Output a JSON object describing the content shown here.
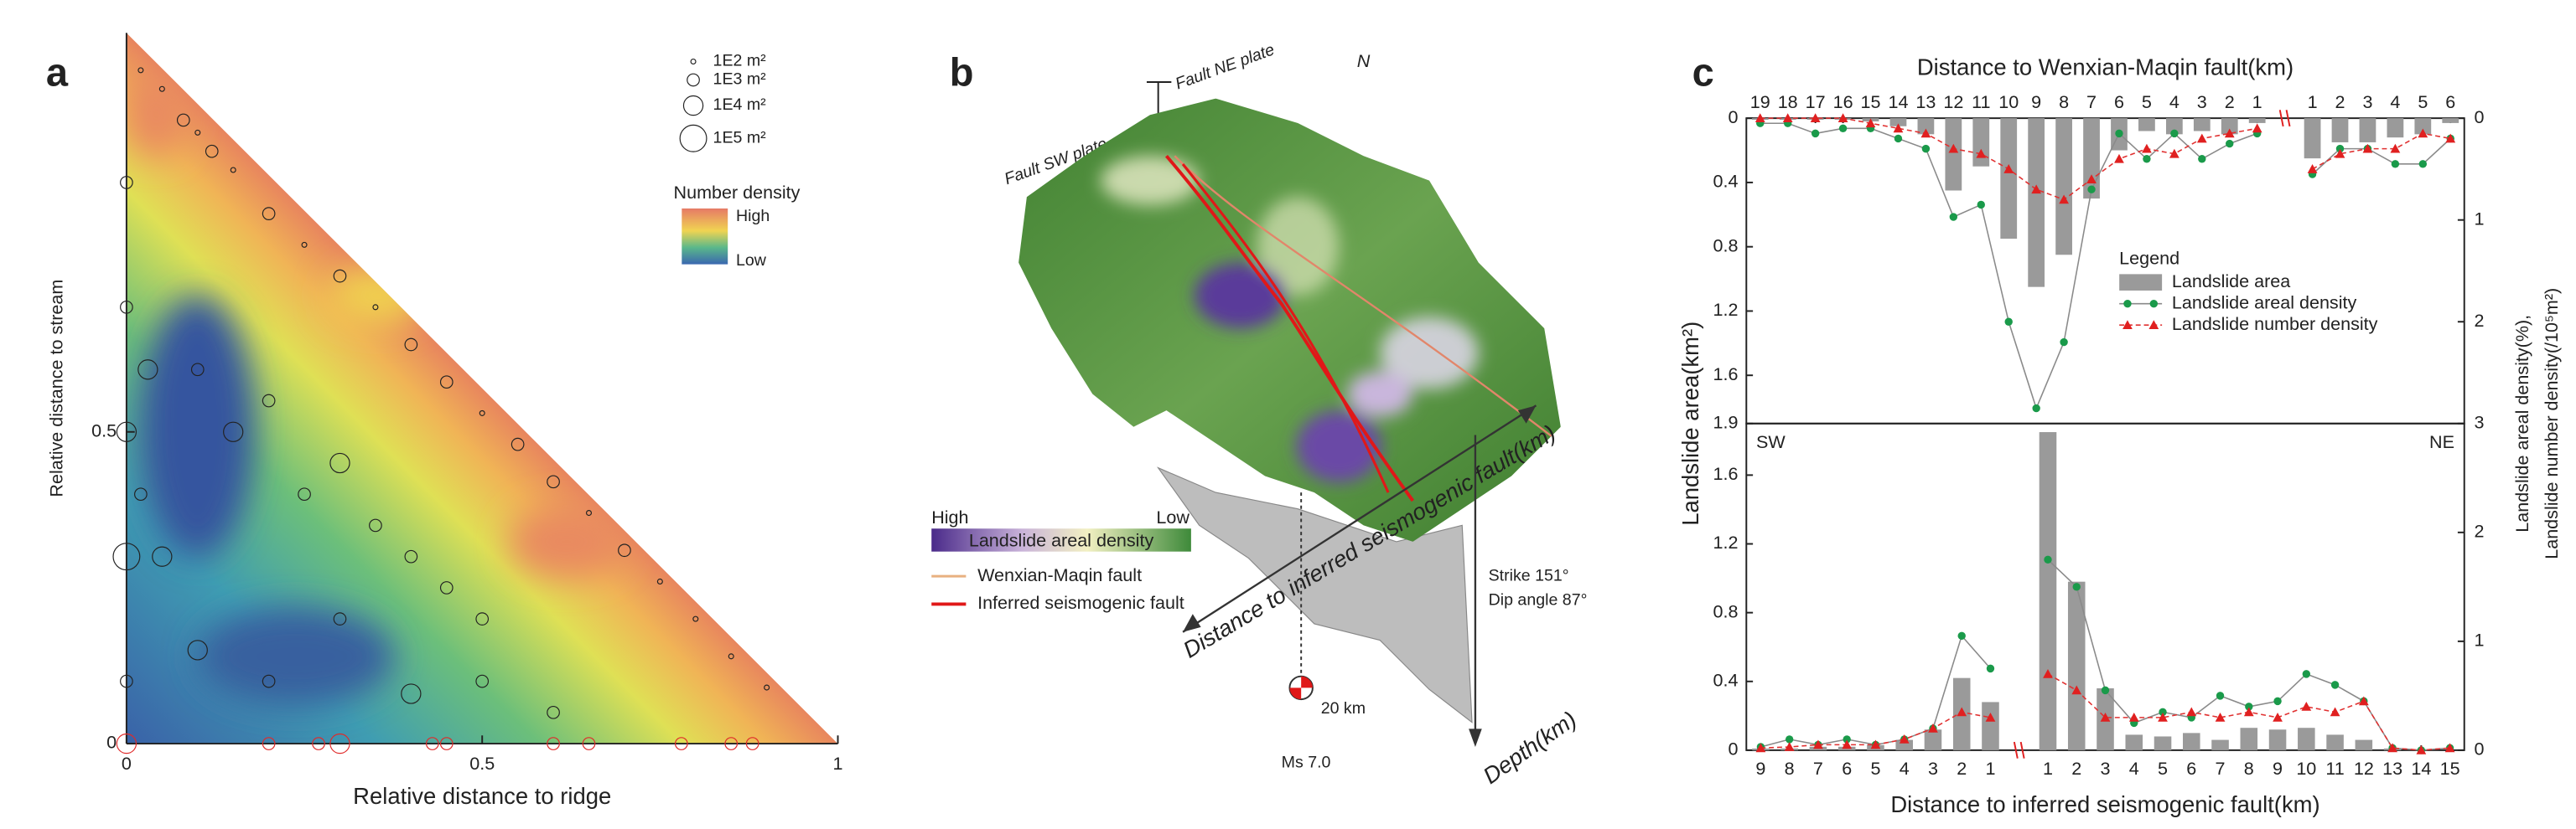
{
  "chart_data": [
    {
      "type": "scatter",
      "panel_label": "a",
      "xlabel": "Relative distance to ridge",
      "ylabel": "Relative distance to stream",
      "xlim": [
        0,
        1
      ],
      "ylim": [
        0,
        1.14
      ],
      "xticks": [
        0,
        0.5,
        1
      ],
      "yticks": [
        0,
        0.5
      ],
      "points": [
        {
          "color": "#222222",
          "x": [
            0.02,
            0.05,
            0.08,
            0.1,
            0.12,
            0.15,
            0.2,
            0.25,
            0.3,
            0.35,
            0.4,
            0.45,
            0.5,
            0.55,
            0.6,
            0.65,
            0.7,
            0.75,
            0.8,
            0.85,
            0.9,
            0.1,
            0.15,
            0.2,
            0.25,
            0.3,
            0.35,
            0.4,
            0.45,
            0.5,
            0.05,
            0.1,
            0.2,
            0.3,
            0.4,
            0.5,
            0.6,
            0,
            0,
            0,
            0,
            0,
            0.02,
            0.03
          ],
          "y": [
            1.08,
            1.05,
            1.0,
            0.98,
            0.95,
            0.92,
            0.85,
            0.8,
            0.75,
            0.7,
            0.64,
            0.58,
            0.53,
            0.48,
            0.42,
            0.37,
            0.31,
            0.26,
            0.2,
            0.14,
            0.09,
            0.6,
            0.5,
            0.55,
            0.4,
            0.45,
            0.35,
            0.3,
            0.25,
            0.2,
            0.3,
            0.15,
            0.1,
            0.2,
            0.08,
            0.1,
            0.05,
            0.9,
            0.7,
            0.5,
            0.3,
            0.1,
            0.4,
            0.6
          ],
          "size": [
            100,
            100,
            1000,
            100,
            1000,
            100,
            1000,
            100,
            1000,
            100,
            1000,
            1000,
            100,
            1000,
            1000,
            100,
            1000,
            100,
            100,
            100,
            100,
            1000,
            10000,
            1000,
            1000,
            10000,
            1000,
            1000,
            1000,
            1000,
            10000,
            10000,
            1000,
            1000,
            10000,
            1000,
            1000,
            1000,
            1000,
            10000,
            100000,
            1000,
            1000,
            10000
          ]
        },
        {
          "color": "#e02a2a",
          "x": [
            0,
            0.2,
            0.27,
            0.3,
            0.43,
            0.45,
            0.6,
            0.65,
            0.78,
            0.85,
            0.88
          ],
          "y": [
            0,
            0,
            0,
            0,
            0,
            0,
            0,
            0,
            0,
            0,
            0
          ],
          "size": [
            10000,
            1000,
            1000,
            10000,
            1000,
            1000,
            1000,
            1000,
            1000,
            1000,
            1000
          ]
        }
      ],
      "size_legend": {
        "values": [
          100,
          1000,
          10000,
          100000
        ],
        "labels": [
          "1E2 m²",
          "1E3 m²",
          "1E4 m²",
          "1E5 m²"
        ]
      },
      "colorbar": {
        "title": "Number density",
        "high": "High",
        "low": "Low"
      }
    },
    {
      "type": "bar",
      "panel_label": "c",
      "y_inverted": true,
      "xlabel": "Distance to Wenxian-Maqin fault(km)",
      "ylabel": "Landslide area(km²)",
      "y2label": [
        "Landslide areal density(%),",
        "Landslide number density(/10⁵m²)"
      ],
      "legend_title": "Legend",
      "categories": [
        "19",
        "18",
        "17",
        "16",
        "15",
        "14",
        "13",
        "12",
        "11",
        "10",
        "9",
        "8",
        "7",
        "6",
        "5",
        "4",
        "3",
        "2",
        "1",
        null,
        "1",
        "2",
        "3",
        "4",
        "5",
        "6"
      ],
      "ylim": [
        0,
        1.9
      ],
      "yticks": [
        0,
        0.4,
        0.8,
        1.2,
        1.6
      ],
      "y2lim": [
        0,
        3
      ],
      "y2ticks": [
        0,
        1,
        2
      ],
      "series": [
        {
          "name": "Landslide area",
          "type": "bar",
          "color": "#9a9a9a",
          "values": [
            0.01,
            0.01,
            0.01,
            0.01,
            0.02,
            0.05,
            0.1,
            0.45,
            0.3,
            0.75,
            1.05,
            0.85,
            0.5,
            0.2,
            0.08,
            0.1,
            0.08,
            0.1,
            0.03,
            null,
            0.25,
            0.15,
            0.15,
            0.12,
            0.1,
            0.03
          ]
        },
        {
          "name": "Landslide areal density",
          "type": "line",
          "axis": "y2",
          "marker": "circle",
          "color": "#1a9a4a",
          "line_color": "#8a8a8a",
          "dashed": false,
          "values": [
            0.05,
            0.05,
            0.15,
            0.1,
            0.1,
            0.2,
            0.3,
            0.97,
            0.85,
            2.0,
            2.85,
            2.2,
            0.7,
            0.15,
            0.4,
            0.15,
            0.4,
            0.25,
            0.15,
            null,
            0.55,
            0.3,
            0.3,
            0.45,
            0.45,
            0.2
          ]
        },
        {
          "name": "Landslide number density",
          "type": "line",
          "axis": "y2",
          "marker": "triangle",
          "color": "#e02020",
          "line_color": "#e03030",
          "dashed": true,
          "values": [
            0,
            0,
            0,
            0,
            0.05,
            0.1,
            0.15,
            0.3,
            0.35,
            0.5,
            0.7,
            0.8,
            0.6,
            0.4,
            0.3,
            0.35,
            0.2,
            0.15,
            0.1,
            null,
            0.5,
            0.35,
            0.3,
            0.3,
            0.15,
            0.2
          ]
        }
      ]
    },
    {
      "type": "bar",
      "y_inverted": false,
      "xlabel": "Distance to inferred seismogenic fault(km)",
      "annotations": [
        "SW",
        "NE"
      ],
      "categories": [
        "9",
        "8",
        "7",
        "6",
        "5",
        "4",
        "3",
        "2",
        "1",
        null,
        "1",
        "2",
        "3",
        "4",
        "5",
        "6",
        "7",
        "8",
        "9",
        "10",
        "11",
        "12",
        "13",
        "14",
        "15"
      ],
      "ylim": [
        0,
        1.9
      ],
      "yticks": [
        0,
        0.4,
        0.8,
        1.2,
        1.6,
        1.9
      ],
      "y2lim": [
        0,
        3
      ],
      "y2ticks": [
        0,
        1,
        2,
        3
      ],
      "series": [
        {
          "type": "bar",
          "color": "#9a9a9a",
          "values": [
            0.01,
            0.01,
            0.02,
            0.02,
            0.03,
            0.06,
            0.12,
            0.42,
            0.28,
            null,
            1.85,
            0.98,
            0.36,
            0.09,
            0.08,
            0.1,
            0.06,
            0.13,
            0.12,
            0.13,
            0.09,
            0.06,
            0.01,
            0,
            0
          ]
        },
        {
          "type": "line",
          "axis": "y2",
          "marker": "circle",
          "color": "#1a9a4a",
          "line_color": "#8a8a8a",
          "dashed": false,
          "values": [
            0.03,
            0.1,
            0.05,
            0.1,
            0.05,
            0.1,
            0.2,
            1.05,
            0.75,
            null,
            1.75,
            1.5,
            0.55,
            0.25,
            0.35,
            0.3,
            0.5,
            0.4,
            0.45,
            0.7,
            0.6,
            0.45,
            0.02,
            0,
            0.02
          ]
        },
        {
          "type": "line",
          "axis": "y2",
          "marker": "triangle",
          "color": "#e02020",
          "line_color": "#e03030",
          "dashed": true,
          "values": [
            0.02,
            0.03,
            0.05,
            0.05,
            0.05,
            0.1,
            0.2,
            0.35,
            0.3,
            null,
            0.7,
            0.55,
            0.3,
            0.3,
            0.3,
            0.35,
            0.3,
            0.35,
            0.3,
            0.4,
            0.35,
            0.45,
            0.02,
            0,
            0.02
          ]
        }
      ]
    }
  ],
  "diagram": {
    "panel_label": "b",
    "fault_sw_plate": "Fault SW plate",
    "fault_ne_plate": "Fault NE plate",
    "north": "N",
    "legend_high": "High",
    "legend_low": "Low",
    "legend_title": "Landslide areal density",
    "wenxian_maqin": "Wenxian-Maqin fault",
    "inferred_fault": "Inferred seismogenic fault",
    "distance_axis": "Distance to inferred seismogenic fault(km)",
    "strike": "Strike 151°",
    "dip": "Dip angle 87°",
    "depth": "Depth(km)",
    "depth_20": "20 km",
    "magnitude": "Ms 7.0"
  }
}
